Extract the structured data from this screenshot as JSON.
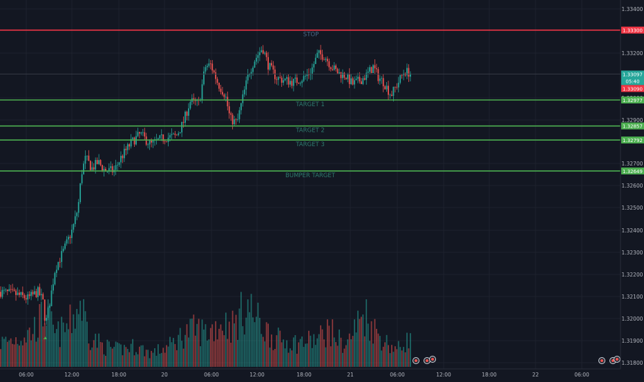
{
  "chart_data": {
    "type": "candlestick",
    "title": "",
    "xlabel": "",
    "ylabel": "",
    "ylim": [
      1.3175,
      1.3342
    ],
    "x_ticks": [
      "06:00",
      "12:00",
      "18:00",
      "20",
      "06:00",
      "12:00",
      "18:00",
      "21",
      "06:00",
      "12:00",
      "18:00",
      "22",
      "06:00"
    ],
    "y_ticks": [
      "1.33400",
      "1.33200",
      "1.33000",
      "1.32900",
      "1.32700",
      "1.32600",
      "1.32500",
      "1.32400",
      "1.32300",
      "1.32200",
      "1.32100",
      "1.32000",
      "1.31900",
      "1.31800"
    ],
    "levels": [
      {
        "name": "STOP",
        "value": 1.333,
        "price_label": "1.33300",
        "color": "#f23645"
      },
      {
        "name": "TARGET 1",
        "value": 1.32977,
        "price_label": "1.32977",
        "color": "#4caf50"
      },
      {
        "name": "TARGET 2",
        "value": 1.32857,
        "price_label": "1.32857",
        "color": "#4caf50"
      },
      {
        "name": "TARGET 3",
        "value": 1.32792,
        "price_label": "1.32792",
        "color": "#4caf50"
      },
      {
        "name": "BUMPER TARGET",
        "value": 1.32649,
        "price_label": "1.32649",
        "color": "#4caf50"
      }
    ],
    "current_price": {
      "label": "1.33097",
      "value": 1.33097,
      "color": "#26a69a"
    },
    "countdown": {
      "label": "05:40",
      "color": "#26a69a"
    },
    "prev_price": {
      "label": "1.33090",
      "value": 1.3309,
      "color": "#f23645"
    },
    "price_anchors": [
      [
        0,
        1.3209
      ],
      [
        22,
        1.3208
      ],
      [
        40,
        1.3206
      ],
      [
        55,
        1.3209
      ],
      [
        62,
        1.3205
      ],
      [
        66,
        1.3194
      ],
      [
        72,
        1.3204
      ],
      [
        80,
        1.322
      ],
      [
        92,
        1.3228
      ],
      [
        105,
        1.3238
      ],
      [
        113,
        1.3248
      ],
      [
        118,
        1.3264
      ],
      [
        124,
        1.3271
      ],
      [
        133,
        1.3266
      ],
      [
        142,
        1.3269
      ],
      [
        152,
        1.3265
      ],
      [
        165,
        1.3265
      ],
      [
        175,
        1.3271
      ],
      [
        190,
        1.3278
      ],
      [
        203,
        1.3282
      ],
      [
        218,
        1.3277
      ],
      [
        235,
        1.328
      ],
      [
        255,
        1.3281
      ],
      [
        265,
        1.3287
      ],
      [
        275,
        1.3297
      ],
      [
        288,
        1.3296
      ],
      [
        297,
        1.3313
      ],
      [
        305,
        1.3314
      ],
      [
        316,
        1.3305
      ],
      [
        326,
        1.33
      ],
      [
        333,
        1.3289
      ],
      [
        343,
        1.3287
      ],
      [
        350,
        1.3297
      ],
      [
        360,
        1.331
      ],
      [
        368,
        1.3316
      ],
      [
        380,
        1.3322
      ],
      [
        388,
        1.3314
      ],
      [
        400,
        1.3308
      ],
      [
        410,
        1.3307
      ],
      [
        425,
        1.3306
      ],
      [
        440,
        1.3308
      ],
      [
        450,
        1.3311
      ],
      [
        460,
        1.3319
      ],
      [
        470,
        1.3318
      ],
      [
        480,
        1.3313
      ],
      [
        490,
        1.331
      ],
      [
        500,
        1.3309
      ],
      [
        510,
        1.3305
      ],
      [
        522,
        1.3307
      ],
      [
        530,
        1.3309
      ],
      [
        540,
        1.3313
      ],
      [
        548,
        1.3308
      ],
      [
        555,
        1.3306
      ],
      [
        566,
        1.33
      ],
      [
        575,
        1.3305
      ],
      [
        585,
        1.3311
      ],
      [
        596,
        1.331
      ]
    ],
    "volume_anchors": [
      [
        0,
        0.35
      ],
      [
        20,
        0.4
      ],
      [
        45,
        0.5
      ],
      [
        60,
        0.7
      ],
      [
        65,
        0.85
      ],
      [
        80,
        0.45
      ],
      [
        100,
        0.6
      ],
      [
        117,
        0.95
      ],
      [
        130,
        0.45
      ],
      [
        150,
        0.3
      ],
      [
        170,
        0.25
      ],
      [
        195,
        0.3
      ],
      [
        220,
        0.2
      ],
      [
        245,
        0.3
      ],
      [
        268,
        0.5
      ],
      [
        285,
        0.55
      ],
      [
        300,
        0.5
      ],
      [
        320,
        0.65
      ],
      [
        338,
        0.6
      ],
      [
        358,
        0.9
      ],
      [
        378,
        0.6
      ],
      [
        400,
        0.4
      ],
      [
        430,
        0.35
      ],
      [
        460,
        0.4
      ],
      [
        475,
        0.55
      ],
      [
        500,
        0.3
      ],
      [
        527,
        0.8
      ],
      [
        545,
        0.5
      ],
      [
        560,
        0.35
      ],
      [
        575,
        0.25
      ],
      [
        596,
        0.45
      ]
    ],
    "up_color": "#26a69a",
    "down_color": "#ef5350",
    "background": "#131722",
    "grid": true
  }
}
